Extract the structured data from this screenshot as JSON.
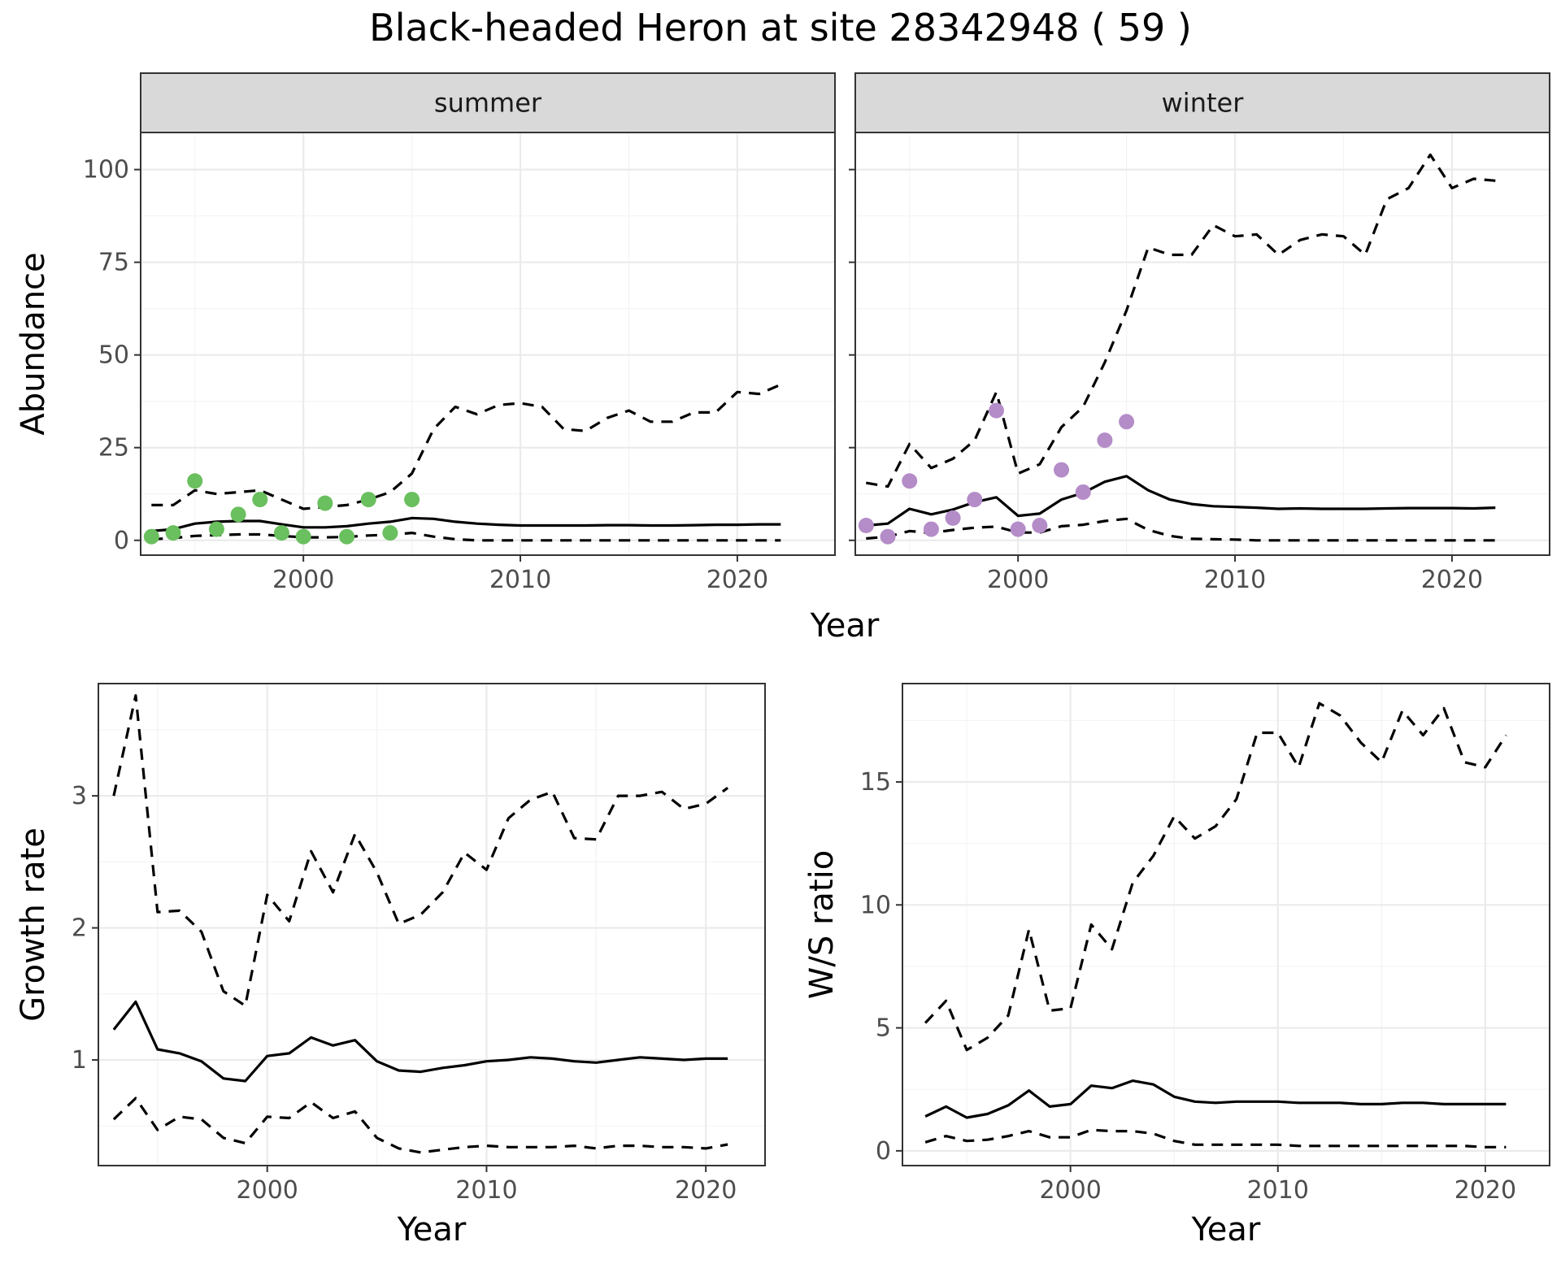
{
  "title": "Black-headed Heron at site 28342948 ( 59 )",
  "colors": {
    "summer_points": "#6abf5e",
    "winter_points": "#b48cc8",
    "lines": "#000000"
  },
  "chart_data": [
    {
      "type": "line",
      "facet": "summer",
      "xlabel": "",
      "ylabel": "Abundance",
      "xlim": [
        1992.5,
        2024.5
      ],
      "ylim": [
        -4,
        110
      ],
      "xticks": [
        2000,
        2010,
        2020
      ],
      "yticks": [
        0,
        25,
        50,
        75,
        100
      ],
      "grid": true,
      "points": {
        "x": [
          1993,
          1994,
          1995,
          1996,
          1997,
          1998,
          1999,
          2000,
          2001,
          2002,
          2003,
          2004,
          2005
        ],
        "y": [
          1,
          2,
          16,
          3,
          7,
          11,
          2,
          1,
          10,
          1,
          11,
          2,
          11
        ]
      },
      "x": [
        1993,
        1994,
        1995,
        1996,
        1997,
        1998,
        1999,
        2000,
        2001,
        2002,
        2003,
        2004,
        2005,
        2006,
        2007,
        2008,
        2009,
        2010,
        2011,
        2012,
        2013,
        2014,
        2015,
        2016,
        2017,
        2018,
        2019,
        2020,
        2021,
        2022
      ],
      "series": [
        {
          "role": "mean",
          "values": [
            2.5,
            3,
            4.5,
            5,
            5.2,
            5.2,
            4.3,
            3.5,
            3.5,
            3.8,
            4.5,
            5,
            6,
            5.8,
            5,
            4.5,
            4.2,
            4,
            4,
            4,
            4,
            4.1,
            4.1,
            4,
            4,
            4.1,
            4.2,
            4.2,
            4.3,
            4.3
          ]
        },
        {
          "role": "upper",
          "values": [
            9.5,
            9.5,
            13.5,
            12.5,
            13,
            13.5,
            11,
            8.5,
            9,
            9.5,
            11,
            13,
            18,
            30,
            36,
            34,
            36.5,
            37,
            36,
            30,
            29.5,
            33,
            35,
            32,
            32,
            34.5,
            34.5,
            40,
            39.5,
            42
          ]
        },
        {
          "role": "lower",
          "values": [
            0.3,
            0.6,
            1.2,
            1.4,
            1.6,
            1.6,
            1.2,
            0.8,
            0.8,
            0.9,
            1.3,
            1.5,
            2,
            1,
            0.3,
            0,
            0,
            0,
            0,
            0,
            0,
            0,
            0,
            0,
            0,
            0,
            0,
            0,
            0,
            0
          ]
        }
      ]
    },
    {
      "type": "line",
      "facet": "winter",
      "xlabel": "",
      "ylabel": "",
      "xlim": [
        1992.5,
        2024.5
      ],
      "ylim": [
        -4,
        110
      ],
      "xticks": [
        2000,
        2010,
        2020
      ],
      "yticks": [
        0,
        25,
        50,
        75,
        100
      ],
      "grid": true,
      "points": {
        "x": [
          1993,
          1994,
          1995,
          1996,
          1997,
          1998,
          1999,
          2000,
          2001,
          2002,
          2003,
          2004,
          2005
        ],
        "y": [
          4,
          1,
          16,
          3,
          6,
          11,
          35,
          3,
          4,
          19,
          13,
          27,
          32
        ]
      },
      "x": [
        1993,
        1994,
        1995,
        1996,
        1997,
        1998,
        1999,
        2000,
        2001,
        2002,
        2003,
        2004,
        2005,
        2006,
        2007,
        2008,
        2009,
        2010,
        2011,
        2012,
        2013,
        2014,
        2015,
        2016,
        2017,
        2018,
        2019,
        2020,
        2021,
        2022
      ],
      "series": [
        {
          "role": "mean",
          "values": [
            4,
            4.5,
            8.5,
            7,
            8.3,
            10.3,
            11.6,
            6.6,
            7.2,
            11,
            12.8,
            15.8,
            17.3,
            13.5,
            11,
            9.8,
            9.2,
            9,
            8.8,
            8.5,
            8.6,
            8.5,
            8.5,
            8.5,
            8.6,
            8.7,
            8.7,
            8.7,
            8.6,
            8.8
          ]
        },
        {
          "role": "upper",
          "values": [
            15.5,
            14.5,
            26,
            19.5,
            22,
            27,
            40,
            18,
            20.5,
            30.5,
            36,
            48,
            62,
            79,
            77,
            77,
            85,
            82,
            82.5,
            77,
            81,
            82.5,
            82,
            77,
            92,
            95,
            104,
            95,
            97.5,
            97
          ]
        },
        {
          "role": "lower",
          "values": [
            0.5,
            1,
            2.5,
            2,
            2.8,
            3.4,
            3.7,
            2.1,
            2.1,
            3.8,
            4.2,
            5.2,
            5.8,
            2.8,
            1.2,
            0.4,
            0.3,
            0.2,
            0,
            0,
            0,
            0,
            0,
            0,
            0,
            0,
            0,
            0,
            0,
            0
          ]
        }
      ]
    },
    {
      "type": "line",
      "xlabel": "Year",
      "ylabel": "Growth rate",
      "xlim": [
        1992.3,
        2022.7
      ],
      "ylim": [
        0.2,
        3.85
      ],
      "xticks": [
        2000,
        2010,
        2020
      ],
      "yticks": [
        1,
        2,
        3
      ],
      "grid": true,
      "x": [
        1993,
        1994,
        1995,
        1996,
        1997,
        1998,
        1999,
        2000,
        2001,
        2002,
        2003,
        2004,
        2005,
        2006,
        2007,
        2008,
        2009,
        2010,
        2011,
        2012,
        2013,
        2014,
        2015,
        2016,
        2017,
        2018,
        2019,
        2020,
        2021
      ],
      "series": [
        {
          "role": "mean",
          "values": [
            1.23,
            1.44,
            1.08,
            1.05,
            0.99,
            0.86,
            0.84,
            1.03,
            1.05,
            1.17,
            1.11,
            1.15,
            0.99,
            0.92,
            0.91,
            0.94,
            0.96,
            0.99,
            1.0,
            1.02,
            1.01,
            0.99,
            0.98,
            1.0,
            1.02,
            1.01,
            1.0,
            1.01,
            1.01
          ]
        },
        {
          "role": "upper",
          "values": [
            3.0,
            3.76,
            2.12,
            2.13,
            1.97,
            1.52,
            1.41,
            2.25,
            2.05,
            2.58,
            2.27,
            2.71,
            2.42,
            2.03,
            2.1,
            2.27,
            2.57,
            2.44,
            2.83,
            2.97,
            3.03,
            2.68,
            2.67,
            3.0,
            3.0,
            3.03,
            2.9,
            2.94,
            3.06
          ]
        },
        {
          "role": "lower",
          "values": [
            0.55,
            0.71,
            0.47,
            0.57,
            0.55,
            0.41,
            0.37,
            0.57,
            0.56,
            0.68,
            0.56,
            0.61,
            0.41,
            0.33,
            0.3,
            0.32,
            0.34,
            0.35,
            0.34,
            0.34,
            0.34,
            0.35,
            0.33,
            0.35,
            0.35,
            0.34,
            0.34,
            0.33,
            0.36
          ]
        }
      ]
    },
    {
      "type": "line",
      "xlabel": "Year",
      "ylabel": "W/S ratio",
      "xlim": [
        1991.9,
        2023.1
      ],
      "ylim": [
        -0.6,
        19
      ],
      "xticks": [
        2000,
        2010,
        2020
      ],
      "yticks": [
        0,
        5,
        10,
        15
      ],
      "grid": true,
      "x": [
        1993,
        1994,
        1995,
        1996,
        1997,
        1998,
        1999,
        2000,
        2001,
        2002,
        2003,
        2004,
        2005,
        2006,
        2007,
        2008,
        2009,
        2010,
        2011,
        2012,
        2013,
        2014,
        2015,
        2016,
        2017,
        2018,
        2019,
        2020,
        2021
      ],
      "series": [
        {
          "role": "mean",
          "values": [
            1.4,
            1.8,
            1.35,
            1.5,
            1.85,
            2.45,
            1.8,
            1.9,
            2.65,
            2.55,
            2.85,
            2.7,
            2.2,
            2.0,
            1.95,
            2.0,
            2.0,
            2.0,
            1.95,
            1.95,
            1.95,
            1.9,
            1.9,
            1.95,
            1.95,
            1.9,
            1.9,
            1.9,
            1.9
          ]
        },
        {
          "role": "upper",
          "values": [
            5.2,
            6.1,
            4.1,
            4.6,
            5.5,
            9.0,
            5.7,
            5.8,
            9.2,
            8.2,
            10.9,
            12.0,
            13.6,
            12.7,
            13.2,
            14.3,
            17.0,
            17.0,
            15.6,
            18.2,
            17.7,
            16.6,
            15.8,
            17.9,
            16.9,
            18.0,
            15.8,
            15.6,
            16.9
          ]
        },
        {
          "role": "lower",
          "values": [
            0.35,
            0.6,
            0.4,
            0.45,
            0.6,
            0.8,
            0.55,
            0.55,
            0.85,
            0.8,
            0.8,
            0.7,
            0.4,
            0.25,
            0.25,
            0.25,
            0.25,
            0.25,
            0.2,
            0.2,
            0.2,
            0.2,
            0.2,
            0.2,
            0.2,
            0.2,
            0.2,
            0.15,
            0.15
          ]
        }
      ]
    }
  ]
}
